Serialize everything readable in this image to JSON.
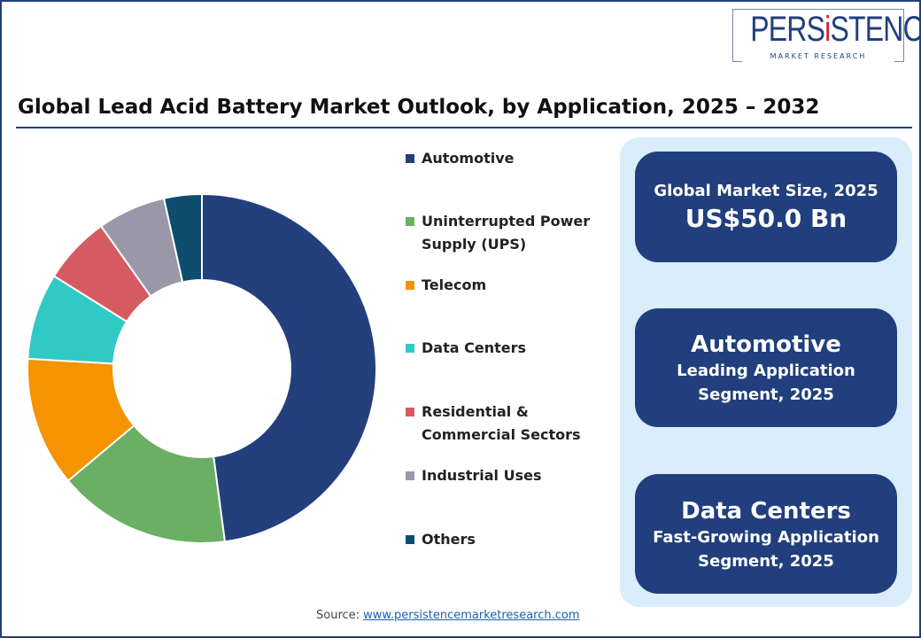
{
  "logo": {
    "text_main_a": "PERS",
    "text_main_i": "i",
    "text_main_b": "STENCE",
    "text_sub": "MARKET RESEARCH"
  },
  "title": "Global Lead Acid Battery Market Outlook, by Application, 2025 – 2032",
  "chart_data": {
    "type": "pie",
    "variant": "donut",
    "title": "Global Lead Acid Battery Market Outlook, by Application, 2025 – 2032",
    "categories": [
      "Automotive",
      "Uninterrupted Power Supply (UPS)",
      "Telecom",
      "Data Centers",
      "Residential & Commercial Sectors",
      "Industrial Uses",
      "Others"
    ],
    "legend_lines": [
      [
        "Automotive"
      ],
      [
        "Uninterrupted Power",
        "Supply (UPS)"
      ],
      [
        "Telecom"
      ],
      [
        "Data Centers"
      ],
      [
        "Residential &",
        "Commercial Sectors"
      ],
      [
        "Industrial Uses"
      ],
      [
        "Others"
      ]
    ],
    "values": [
      47.9,
      16.0,
      12.0,
      8.0,
      6.3,
      6.3,
      3.5
    ],
    "unit": "%",
    "colors": [
      "#233f7c",
      "#6aaf64",
      "#f59300",
      "#31c9c4",
      "#d65b60",
      "#9a97a8",
      "#0f4d6e"
    ],
    "legend": "right"
  },
  "cards": [
    {
      "line1": "Global Market Size, 2025",
      "line2": "US$50.0 Bn"
    },
    {
      "line1": "Automotive",
      "line2": "Leading Application",
      "line3": "Segment, 2025"
    },
    {
      "line1": "Data Centers",
      "line2": "Fast-Growing Application",
      "line3": "Segment, 2025"
    }
  ],
  "source": {
    "label": "Source:",
    "link": "www.persistencemarketresearch.com"
  }
}
